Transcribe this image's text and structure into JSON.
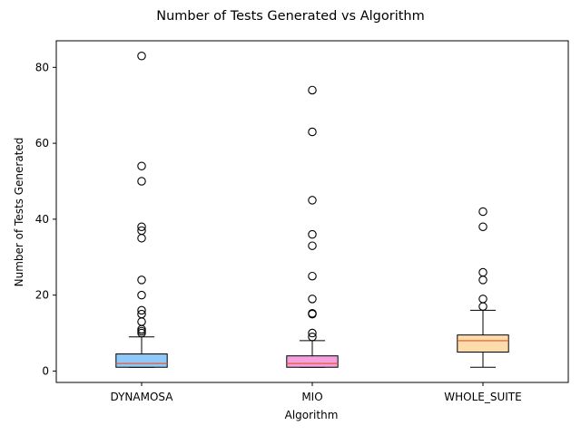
{
  "chart_data": {
    "type": "boxplot",
    "title": "Number of Tests Generated vs Algorithm",
    "xlabel": "Algorithm",
    "ylabel": "Number of Tests Generated",
    "ylim": [
      -3,
      87
    ],
    "yticks": [
      0,
      20,
      40,
      60,
      80
    ],
    "grid": false,
    "categories": [
      "DYNAMOSA",
      "MIO",
      "WHOLE_SUITE"
    ],
    "boxes": [
      {
        "name": "DYNAMOSA",
        "color": "#90c8f8",
        "whisker_low": 1,
        "q1": 1,
        "median": 2,
        "q3": 4.5,
        "whisker_high": 9,
        "outliers": [
          10,
          10.5,
          11,
          13,
          15,
          16,
          20,
          24,
          35,
          37,
          38,
          50,
          54,
          83
        ]
      },
      {
        "name": "MIO",
        "color": "#f3a0dc",
        "whisker_low": 1,
        "q1": 1,
        "median": 2,
        "q3": 4,
        "whisker_high": 8,
        "outliers": [
          9,
          10,
          15,
          15.2,
          19,
          25,
          33,
          36,
          45,
          63,
          74
        ]
      },
      {
        "name": "WHOLE_SUITE",
        "color": "#fddcac",
        "whisker_low": 1,
        "q1": 5,
        "median": 8,
        "q3": 9.5,
        "whisker_high": 16,
        "outliers": [
          17,
          19,
          24,
          26,
          38,
          42
        ]
      }
    ],
    "median_color": "#e8502a"
  }
}
